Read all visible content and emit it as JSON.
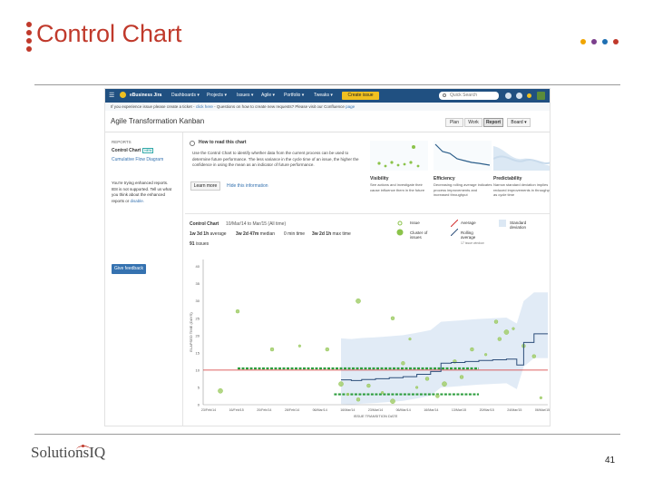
{
  "slide": {
    "title": "Control Chart",
    "page_number": "41",
    "logo_text": "SolutionsIQ",
    "accent_color": "#c0392b",
    "corner_dot_colors": [
      "#f0a500",
      "#7b3f8c",
      "#1f6fb2",
      "#c0392b"
    ]
  },
  "jira": {
    "nav": {
      "brand": "eBusiness Jira",
      "menus": [
        "Dashboards ▾",
        "Projects ▾",
        "Issues ▾",
        "Agile ▾",
        "Portfolio ▾",
        "Tweaks ▾"
      ],
      "create_label": "Create issue",
      "search_placeholder": "Quick Search",
      "icons": [
        "help-icon",
        "settings-icon",
        "notifications-icon"
      ]
    },
    "banner": {
      "text": "If you experience issue please create a ticket - ",
      "link1": "click here",
      "text2": " - Questions on how to create new requests? Please visit our Confluence ",
      "link2": "page"
    },
    "board": {
      "title": "Agile Transformation Kanban",
      "segments": [
        "Plan",
        "Work",
        "Report"
      ],
      "active_segment": "Report",
      "board_button": "Board ▾"
    },
    "sidebar": {
      "heading": "REPORTS",
      "current": "Control Chart",
      "new_badge": "NEW",
      "link": "Cumulative Flow Diagram",
      "note": "You're trying enhanced reports. IE8 is not supported. Tell us what you think about the enhanced reports or ",
      "note_link": "disable.",
      "feedback_button": "Give feedback"
    },
    "howto": {
      "title": "How to read this chart",
      "text": "Use the Control Chart to identify whether data from the current process can be used to determine future performance. The less variance in the cycle time of an issue, the higher the confidence in using the mean as an indicator of future performance.",
      "learn_button": "Learn more",
      "hide_link": "Hide this information"
    },
    "thumbnails": [
      {
        "title": "Visibility",
        "desc": "See actions and investigate their cause influence them in the future"
      },
      {
        "title": "Efficiency",
        "desc": "Decreasing rolling average indicates process improvements and increased throughput"
      },
      {
        "title": "Predictability",
        "desc": "Narrow standard deviation implies reduced improvements in throughput as cycle time"
      }
    ],
    "control": {
      "label": "Control Chart",
      "range": "10/Mar/14 to Mar/15 (All time)",
      "stats": [
        {
          "value": "1w 3d 1h",
          "label": "average"
        },
        {
          "value": "3w 2d 47m",
          "label": "median"
        },
        {
          "value": "0 min time",
          "label": ""
        },
        {
          "value": "3w 2d 1h",
          "label": "max time"
        }
      ],
      "issues": "91",
      "issues_label": "issues"
    },
    "legend": {
      "issue": "Issue",
      "cluster": "Cluster of issues",
      "average": "Average",
      "rolling": "Rolling average",
      "rolling_sub": "17 issue window",
      "stddev": "Standard deviation"
    }
  },
  "chart_data": {
    "type": "scatter",
    "xlabel": "ISSUE TRANSITION DATE",
    "ylabel": "ELAPSED TIME (DAYS)",
    "y_ticks": [
      0,
      5,
      10,
      15,
      20,
      25,
      30,
      35,
      40
    ],
    "x_ticks": [
      "23/Feb/14",
      "16/Feb/15",
      "20/Feb/14",
      "28/Feb/14",
      "06/Mar/14",
      "16/Mar/14",
      "23/Mar/14",
      "06/Mar/14",
      "16/Mar/14",
      "13/Mar/15",
      "20/Mar/15",
      "24/Mar/15",
      "06/Mar/15"
    ],
    "ylim": [
      0,
      42
    ],
    "average_line": 10,
    "upper_band": 10.5,
    "lower_band": 3,
    "rolling_average": {
      "x": [
        0.4,
        0.43,
        0.46,
        0.5,
        0.54,
        0.58,
        0.62,
        0.66,
        0.69,
        0.72,
        0.76,
        0.8,
        0.84,
        0.88,
        0.91,
        0.93,
        0.96,
        1.0
      ],
      "y": [
        7.2,
        7.0,
        7.3,
        7.5,
        7.8,
        8.1,
        8.8,
        9.6,
        12.0,
        12.2,
        12.5,
        12.8,
        13.0,
        13.2,
        11.5,
        18.0,
        20.5,
        20.5
      ]
    },
    "issues": {
      "x": [
        0.05,
        0.1,
        0.2,
        0.28,
        0.36,
        0.4,
        0.42,
        0.45,
        0.48,
        0.52,
        0.55,
        0.58,
        0.62,
        0.65,
        0.68,
        0.7,
        0.73,
        0.78,
        0.82,
        0.86,
        0.88,
        0.9,
        0.93,
        0.96,
        0.98,
        0.45,
        0.55,
        0.6,
        0.75,
        0.85
      ],
      "y": [
        4,
        27,
        16,
        17,
        16,
        6,
        3,
        1.5,
        5.5,
        3.5,
        1,
        12,
        5,
        7.5,
        2.5,
        6,
        12.5,
        16,
        14.5,
        19,
        21,
        22,
        17,
        14,
        2,
        30,
        25,
        19,
        8,
        24
      ]
    },
    "grid": false,
    "legend_position": "top-right"
  }
}
